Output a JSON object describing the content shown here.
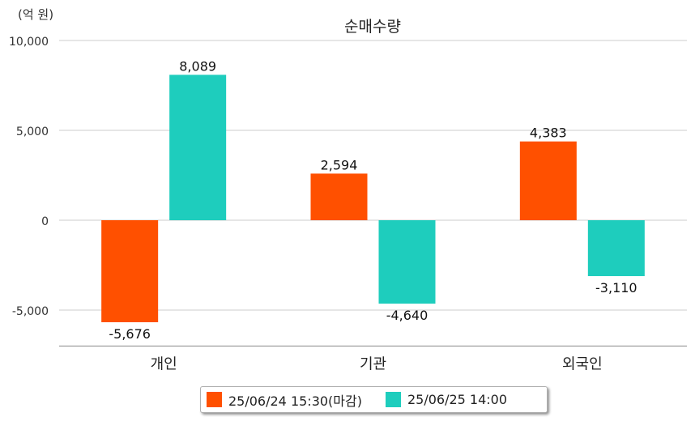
{
  "unit_label": "(억 원)",
  "chart_data": {
    "type": "bar",
    "title": "순매수량",
    "categories": [
      "개인",
      "기관",
      "외국인"
    ],
    "series": [
      {
        "name": "25/06/24 15:30(마감)",
        "color": "#ff5000",
        "values": [
          -5676,
          2594,
          4383
        ],
        "labels": [
          "-5,676",
          "2,594",
          "4,383"
        ]
      },
      {
        "name": "25/06/25 14:00",
        "color": "#1ecdbd",
        "values": [
          8089,
          -4640,
          -3110
        ],
        "labels": [
          "8,089",
          "-4,640",
          "-3,110"
        ]
      }
    ],
    "yticks": [
      10000,
      5000,
      0,
      -5000
    ],
    "ytick_labels": [
      "10,000",
      "5,000",
      "0",
      "-5,000"
    ],
    "ylim": [
      -7000,
      10000
    ],
    "grid": true,
    "legend_position": "bottom"
  }
}
